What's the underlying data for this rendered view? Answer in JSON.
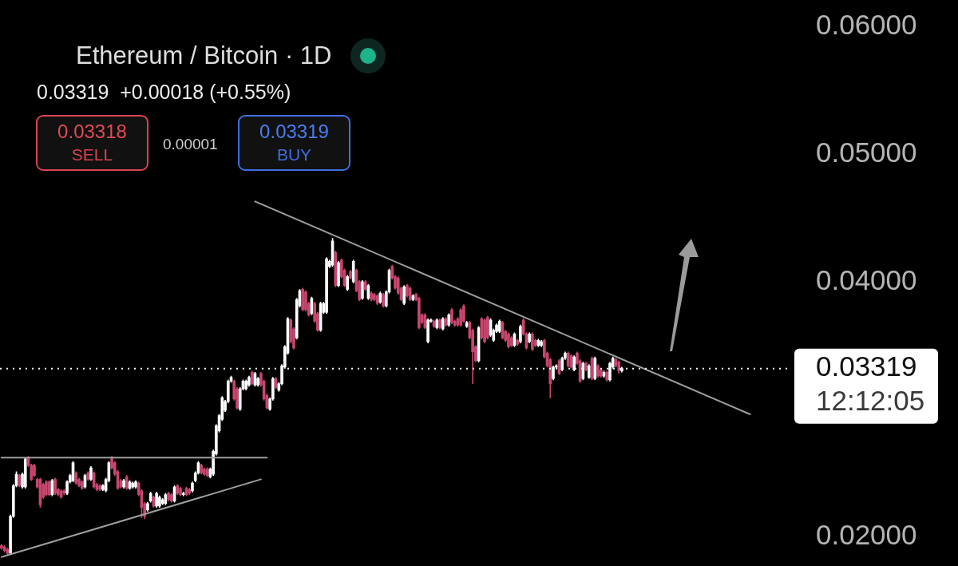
{
  "chart_data": {
    "type": "candlestick",
    "title": "Ethereum / Bitcoin · 1D",
    "subtitle": "0.03319  +0.00018 (+0.55%)",
    "categories": [
      null,
      null,
      null,
      null,
      null,
      null,
      null,
      null,
      null,
      null,
      null,
      null,
      null,
      null,
      null,
      null,
      null,
      null,
      null,
      null,
      null,
      null,
      null,
      null,
      null,
      null,
      null,
      null,
      null,
      null,
      null,
      null,
      null,
      null,
      null,
      null,
      null,
      null,
      null,
      null,
      null,
      null,
      null,
      null,
      null,
      null,
      null,
      null,
      null,
      null,
      null,
      null,
      null,
      null,
      null,
      null,
      null,
      null,
      null,
      null,
      null,
      null,
      null,
      null,
      null,
      null,
      null,
      null,
      null,
      null,
      null,
      null,
      null,
      null,
      null,
      null,
      null,
      null,
      null,
      null,
      null,
      null,
      null,
      null,
      null,
      null,
      null,
      null,
      null,
      null,
      null,
      null,
      null,
      null,
      null,
      null,
      null,
      null,
      null,
      null,
      null,
      null,
      null,
      null,
      null,
      null,
      null,
      null,
      null,
      null,
      null,
      null,
      null,
      null,
      null,
      null,
      null,
      null,
      null,
      null,
      null,
      null,
      null,
      null,
      null,
      null,
      null,
      null,
      null,
      null,
      null,
      null,
      null,
      null,
      null,
      null,
      null,
      null,
      null,
      null,
      null,
      null,
      null,
      null,
      null,
      null,
      null,
      null,
      null,
      null,
      null,
      null,
      null,
      null,
      null,
      null,
      null,
      null,
      null,
      null,
      null,
      null,
      null,
      null,
      null,
      null,
      null,
      null,
      null,
      null,
      null,
      null,
      null,
      null,
      null,
      null,
      null,
      null,
      null,
      null,
      null,
      null,
      null,
      null,
      null,
      null,
      null,
      null,
      null,
      null,
      null,
      null,
      null,
      null,
      null,
      null,
      null,
      null,
      null,
      null,
      null,
      null,
      null,
      null,
      null,
      null,
      null,
      null,
      null,
      null,
      null,
      null,
      null,
      null,
      null,
      null,
      null,
      null,
      null,
      null,
      null,
      null,
      null,
      null,
      null,
      null,
      null,
      null,
      null,
      null,
      null,
      null,
      null,
      null,
      null,
      null,
      null,
      null,
      null,
      null,
      null,
      null,
      null,
      null,
      null,
      null,
      null,
      null,
      null,
      null,
      null,
      null,
      null,
      null,
      null,
      null,
      null,
      null,
      null,
      null,
      null,
      null,
      null,
      null,
      null
    ],
    "ohlc": [
      [
        0.0193,
        0.0194,
        0.019,
        0.0191
      ],
      [
        0.0192,
        0.0193,
        0.0188,
        0.0189
      ],
      [
        0.019,
        0.0191,
        0.0185,
        0.0187
      ],
      [
        0.0187,
        0.0217,
        0.0186,
        0.0216
      ],
      [
        0.0216,
        0.0241,
        0.0215,
        0.024
      ],
      [
        0.024,
        0.0251,
        0.0239,
        0.0249
      ],
      [
        0.0248,
        0.0249,
        0.0239,
        0.024
      ],
      [
        0.0239,
        0.025,
        0.0238,
        0.0249
      ],
      [
        0.0239,
        0.0262,
        0.0238,
        0.0261
      ],
      [
        0.0262,
        0.0263,
        0.0255,
        0.0256
      ],
      [
        0.0256,
        0.0257,
        0.0244,
        0.0245
      ],
      [
        0.0256,
        0.0257,
        0.0247,
        0.0248
      ],
      [
        0.0245,
        0.0246,
        0.0238,
        0.0239
      ],
      [
        0.0245,
        0.0246,
        0.0223,
        0.0225
      ],
      [
        0.0241,
        0.0242,
        0.023,
        0.0231
      ],
      [
        0.0243,
        0.0244,
        0.0232,
        0.0233
      ],
      [
        0.0243,
        0.0244,
        0.0232,
        0.0233
      ],
      [
        0.0233,
        0.0245,
        0.0232,
        0.0244
      ],
      [
        0.0245,
        0.0246,
        0.0233,
        0.0234
      ],
      [
        0.0237,
        0.0238,
        0.0232,
        0.0233
      ],
      [
        0.0236,
        0.0237,
        0.023,
        0.0231
      ],
      [
        0.0236,
        0.0237,
        0.0233,
        0.0234
      ],
      [
        0.0234,
        0.0244,
        0.0233,
        0.0243
      ],
      [
        0.0243,
        0.0249,
        0.0242,
        0.0248
      ],
      [
        0.0244,
        0.0259,
        0.0243,
        0.0258
      ],
      [
        0.025,
        0.0251,
        0.0241,
        0.0242
      ],
      [
        0.0245,
        0.0246,
        0.0239,
        0.024
      ],
      [
        0.0243,
        0.0244,
        0.0237,
        0.0238
      ],
      [
        0.0239,
        0.0249,
        0.0238,
        0.0248
      ],
      [
        0.025,
        0.0251,
        0.0244,
        0.0245
      ],
      [
        0.0245,
        0.0255,
        0.0244,
        0.0254
      ],
      [
        0.025,
        0.0251,
        0.0238,
        0.0239
      ],
      [
        0.0241,
        0.0242,
        0.0236,
        0.0237
      ],
      [
        0.024,
        0.0241,
        0.0236,
        0.0237
      ],
      [
        0.0237,
        0.0241,
        0.0236,
        0.024
      ],
      [
        0.0236,
        0.0246,
        0.0235,
        0.0245
      ],
      [
        0.0244,
        0.0259,
        0.0243,
        0.0258
      ],
      [
        0.0262,
        0.0263,
        0.0253,
        0.0254
      ],
      [
        0.0258,
        0.0259,
        0.0248,
        0.0249
      ],
      [
        0.0251,
        0.0252,
        0.0237,
        0.0238
      ],
      [
        0.0244,
        0.0245,
        0.0238,
        0.0239
      ],
      [
        0.0239,
        0.0245,
        0.0238,
        0.0244
      ],
      [
        0.0247,
        0.0248,
        0.0237,
        0.0238
      ],
      [
        0.0238,
        0.0244,
        0.0237,
        0.0243
      ],
      [
        0.0239,
        0.0243,
        0.0238,
        0.0242
      ],
      [
        0.0239,
        0.0244,
        0.0238,
        0.0243
      ],
      [
        0.0242,
        0.0243,
        0.0232,
        0.0233
      ],
      [
        0.0236,
        0.0237,
        0.0215,
        0.0223
      ],
      [
        0.0226,
        0.0227,
        0.0214,
        0.0216
      ],
      [
        0.0221,
        0.0227,
        0.022,
        0.0226
      ],
      [
        0.0228,
        0.0235,
        0.0227,
        0.0234
      ],
      [
        0.0231,
        0.0232,
        0.0223,
        0.0224
      ],
      [
        0.0224,
        0.0235,
        0.0223,
        0.0234
      ],
      [
        0.0224,
        0.0232,
        0.0223,
        0.0231
      ],
      [
        0.0226,
        0.023,
        0.0225,
        0.0229
      ],
      [
        0.0226,
        0.0234,
        0.0225,
        0.0233
      ],
      [
        0.0234,
        0.0235,
        0.0228,
        0.0229
      ],
      [
        0.0233,
        0.0234,
        0.0227,
        0.0228
      ],
      [
        0.0228,
        0.024,
        0.0227,
        0.0239
      ],
      [
        0.024,
        0.0241,
        0.0233,
        0.0234
      ],
      [
        0.0238,
        0.0239,
        0.0232,
        0.0233
      ],
      [
        0.0233,
        0.0235,
        0.0232,
        0.0234
      ],
      [
        0.0238,
        0.0239,
        0.0232,
        0.0233
      ],
      [
        0.0237,
        0.0238,
        0.0233,
        0.0234
      ],
      [
        0.0236,
        0.0243,
        0.0235,
        0.0242
      ],
      [
        0.0244,
        0.0251,
        0.0243,
        0.025
      ],
      [
        0.025,
        0.0259,
        0.0249,
        0.0258
      ],
      [
        0.0256,
        0.0257,
        0.0249,
        0.025
      ],
      [
        0.0253,
        0.0254,
        0.0248,
        0.0249
      ],
      [
        0.0253,
        0.0254,
        0.0247,
        0.0248
      ],
      [
        0.0247,
        0.0254,
        0.0246,
        0.0253
      ],
      [
        0.0249,
        0.0268,
        0.0248,
        0.0267
      ],
      [
        0.0265,
        0.0288,
        0.0264,
        0.0287
      ],
      [
        0.0283,
        0.0296,
        0.0282,
        0.0295
      ],
      [
        0.0292,
        0.031,
        0.0291,
        0.0309
      ],
      [
        0.0299,
        0.0307,
        0.0298,
        0.0306
      ],
      [
        0.0306,
        0.0323,
        0.0305,
        0.0322
      ],
      [
        0.0322,
        0.0326,
        0.0321,
        0.0325
      ],
      [
        0.0322,
        0.0323,
        0.0307,
        0.0308
      ],
      [
        0.0316,
        0.0317,
        0.03,
        0.0301
      ],
      [
        0.03,
        0.0317,
        0.0299,
        0.0316
      ],
      [
        0.0316,
        0.0323,
        0.0315,
        0.0322
      ],
      [
        0.0316,
        0.0323,
        0.0315,
        0.0322
      ],
      [
        0.0319,
        0.0326,
        0.0318,
        0.0325
      ],
      [
        0.0329,
        0.033,
        0.0319,
        0.032
      ],
      [
        0.0319,
        0.0329,
        0.0318,
        0.0328
      ],
      [
        0.0319,
        0.0325,
        0.0318,
        0.0324
      ],
      [
        0.0328,
        0.0329,
        0.0318,
        0.0319
      ],
      [
        0.0322,
        0.0323,
        0.0307,
        0.0308
      ],
      [
        0.0311,
        0.0312,
        0.03,
        0.0301
      ],
      [
        0.03,
        0.0309,
        0.0299,
        0.0308
      ],
      [
        0.0308,
        0.0325,
        0.0307,
        0.0324
      ],
      [
        0.0324,
        0.0325,
        0.0316,
        0.0317
      ],
      [
        0.0315,
        0.0321,
        0.0314,
        0.032
      ],
      [
        0.032,
        0.0335,
        0.0319,
        0.0334
      ],
      [
        0.0333,
        0.035,
        0.0332,
        0.0349
      ],
      [
        0.0344,
        0.0372,
        0.0343,
        0.0371
      ],
      [
        0.037,
        0.0371,
        0.0352,
        0.0353
      ],
      [
        0.0363,
        0.0364,
        0.0347,
        0.0348
      ],
      [
        0.0356,
        0.0387,
        0.0355,
        0.0386
      ],
      [
        0.0381,
        0.0394,
        0.038,
        0.0393
      ],
      [
        0.0394,
        0.0395,
        0.0377,
        0.0378
      ],
      [
        0.0392,
        0.0393,
        0.0377,
        0.0378
      ],
      [
        0.0383,
        0.0384,
        0.0373,
        0.0374
      ],
      [
        0.0375,
        0.0388,
        0.0374,
        0.0387
      ],
      [
        0.0383,
        0.0384,
        0.0368,
        0.0369
      ],
      [
        0.0375,
        0.0376,
        0.0361,
        0.0362
      ],
      [
        0.0362,
        0.0384,
        0.0361,
        0.0383
      ],
      [
        0.0376,
        0.0384,
        0.0375,
        0.0383
      ],
      [
        0.0376,
        0.0419,
        0.0375,
        0.0418
      ],
      [
        0.0412,
        0.0417,
        0.0411,
        0.0416
      ],
      [
        0.0413,
        0.0434,
        0.0412,
        0.0432
      ],
      [
        0.0423,
        0.0424,
        0.0396,
        0.0397
      ],
      [
        0.0397,
        0.0416,
        0.0396,
        0.0415
      ],
      [
        0.0417,
        0.0418,
        0.0403,
        0.0404
      ],
      [
        0.0409,
        0.041,
        0.0396,
        0.0397
      ],
      [
        0.0394,
        0.0405,
        0.0393,
        0.0404
      ],
      [
        0.0408,
        0.0409,
        0.0402,
        0.0403
      ],
      [
        0.04,
        0.0417,
        0.0399,
        0.0416
      ],
      [
        0.0409,
        0.041,
        0.0392,
        0.0393
      ],
      [
        0.04,
        0.0401,
        0.0385,
        0.0386
      ],
      [
        0.0387,
        0.0401,
        0.0386,
        0.04
      ],
      [
        0.04,
        0.0401,
        0.0393,
        0.0394
      ],
      [
        0.0387,
        0.0398,
        0.0386,
        0.0397
      ],
      [
        0.0391,
        0.0392,
        0.0385,
        0.0386
      ],
      [
        0.039,
        0.0391,
        0.0385,
        0.0386
      ],
      [
        0.0389,
        0.039,
        0.0382,
        0.0383
      ],
      [
        0.0384,
        0.0392,
        0.0383,
        0.0391
      ],
      [
        0.039,
        0.0391,
        0.038,
        0.0381
      ],
      [
        0.0381,
        0.0393,
        0.038,
        0.0392
      ],
      [
        0.0392,
        0.041,
        0.0391,
        0.0409
      ],
      [
        0.0412,
        0.0413,
        0.0402,
        0.0403
      ],
      [
        0.0404,
        0.0405,
        0.0394,
        0.0395
      ],
      [
        0.0403,
        0.0404,
        0.039,
        0.0391
      ],
      [
        0.0395,
        0.0396,
        0.0385,
        0.0386
      ],
      [
        0.0383,
        0.0397,
        0.0382,
        0.0396
      ],
      [
        0.0397,
        0.0398,
        0.0388,
        0.0389
      ],
      [
        0.0395,
        0.0396,
        0.0385,
        0.0386
      ],
      [
        0.0386,
        0.039,
        0.0385,
        0.0389
      ],
      [
        0.039,
        0.0391,
        0.0385,
        0.0386
      ],
      [
        0.0387,
        0.0388,
        0.0363,
        0.0364
      ],
      [
        0.0374,
        0.0375,
        0.0367,
        0.0368
      ],
      [
        0.0374,
        0.0375,
        0.0363,
        0.0364
      ],
      [
        0.0353,
        0.0371,
        0.0352,
        0.037
      ],
      [
        0.0369,
        0.0371,
        0.0368,
        0.037
      ],
      [
        0.0369,
        0.037,
        0.0364,
        0.0365
      ],
      [
        0.0364,
        0.0371,
        0.0363,
        0.037
      ],
      [
        0.037,
        0.0371,
        0.0363,
        0.0364
      ],
      [
        0.0363,
        0.0372,
        0.0362,
        0.0371
      ],
      [
        0.0371,
        0.0372,
        0.0365,
        0.0366
      ],
      [
        0.0366,
        0.0375,
        0.0365,
        0.0374
      ],
      [
        0.0378,
        0.0379,
        0.0367,
        0.0368
      ],
      [
        0.0369,
        0.037,
        0.0365,
        0.0366
      ],
      [
        0.0371,
        0.0372,
        0.0365,
        0.0366
      ],
      [
        0.0378,
        0.0379,
        0.0365,
        0.0366
      ],
      [
        0.0381,
        0.0382,
        0.0368,
        0.0369
      ],
      [
        0.0365,
        0.0369,
        0.0364,
        0.0368
      ],
      [
        0.0368,
        0.0369,
        0.0355,
        0.0356
      ],
      [
        0.0362,
        0.0363,
        0.032,
        0.0345
      ],
      [
        0.0349,
        0.035,
        0.0337,
        0.0338
      ],
      [
        0.0338,
        0.0365,
        0.0337,
        0.0364
      ],
      [
        0.0371,
        0.0372,
        0.0355,
        0.0356
      ],
      [
        0.037,
        0.0371,
        0.0352,
        0.0353
      ],
      [
        0.0372,
        0.0373,
        0.0355,
        0.0356
      ],
      [
        0.0358,
        0.0371,
        0.0357,
        0.037
      ],
      [
        0.0354,
        0.0363,
        0.0353,
        0.0362
      ],
      [
        0.0361,
        0.0367,
        0.036,
        0.0366
      ],
      [
        0.0361,
        0.037,
        0.036,
        0.0369
      ],
      [
        0.0368,
        0.0369,
        0.0355,
        0.0356
      ],
      [
        0.0361,
        0.0362,
        0.0353,
        0.0354
      ],
      [
        0.0359,
        0.036,
        0.0348,
        0.0349
      ],
      [
        0.0356,
        0.0357,
        0.0349,
        0.035
      ],
      [
        0.035,
        0.036,
        0.0349,
        0.0359
      ],
      [
        0.0354,
        0.0355,
        0.035,
        0.0351
      ],
      [
        0.0353,
        0.0366,
        0.0352,
        0.0365
      ],
      [
        0.037,
        0.0371,
        0.0358,
        0.0359
      ],
      [
        0.0359,
        0.036,
        0.0347,
        0.0348
      ],
      [
        0.0353,
        0.036,
        0.0352,
        0.0359
      ],
      [
        0.0359,
        0.036,
        0.0346,
        0.0347
      ],
      [
        0.0354,
        0.0355,
        0.0349,
        0.035
      ],
      [
        0.035,
        0.0355,
        0.0349,
        0.0354
      ],
      [
        0.035,
        0.0354,
        0.0349,
        0.0353
      ],
      [
        0.0354,
        0.0355,
        0.034,
        0.0341
      ],
      [
        0.0344,
        0.0345,
        0.0333,
        0.0334
      ],
      [
        0.0339,
        0.034,
        0.0309,
        0.032
      ],
      [
        0.0324,
        0.0334,
        0.0323,
        0.0333
      ],
      [
        0.0333,
        0.0335,
        0.0332,
        0.0334
      ],
      [
        0.0338,
        0.0339,
        0.0327,
        0.0328
      ],
      [
        0.0331,
        0.0341,
        0.033,
        0.034
      ],
      [
        0.034,
        0.0345,
        0.0339,
        0.0344
      ],
      [
        0.0344,
        0.0345,
        0.0333,
        0.0334
      ],
      [
        0.0342,
        0.0343,
        0.0332,
        0.0333
      ],
      [
        0.0331,
        0.0342,
        0.033,
        0.0341
      ],
      [
        0.0344,
        0.0345,
        0.0335,
        0.0336
      ],
      [
        0.0338,
        0.0339,
        0.0321,
        0.0322
      ],
      [
        0.0324,
        0.0337,
        0.0323,
        0.0336
      ],
      [
        0.0336,
        0.0337,
        0.033,
        0.0331
      ],
      [
        0.0325,
        0.0335,
        0.0324,
        0.0334
      ],
      [
        0.034,
        0.0341,
        0.0323,
        0.0324
      ],
      [
        0.0324,
        0.0341,
        0.0323,
        0.034
      ],
      [
        0.0334,
        0.0335,
        0.0325,
        0.0326
      ],
      [
        0.0331,
        0.0332,
        0.0325,
        0.0326
      ],
      [
        0.0326,
        0.033,
        0.0325,
        0.0329
      ],
      [
        0.0329,
        0.033,
        0.0322,
        0.0323
      ],
      [
        0.0323,
        0.0337,
        0.0322,
        0.0336
      ],
      [
        0.0333,
        0.0341,
        0.0332,
        0.034
      ],
      [
        0.0339,
        0.034,
        0.0333,
        0.0334
      ],
      [
        0.0337,
        0.0338,
        0.0328,
        0.03301
      ],
      [
        0.03301,
        0.0333,
        0.0329,
        0.03319
      ],
      null,
      null,
      null,
      null,
      null,
      null,
      null,
      null,
      null,
      null,
      null,
      null,
      null,
      null,
      null,
      null,
      null,
      null,
      null,
      null,
      null,
      null,
      null,
      null,
      null,
      null,
      null,
      null,
      null,
      null,
      null,
      null,
      null,
      null,
      null,
      null,
      null,
      null,
      null,
      null,
      null,
      null,
      null,
      null,
      null,
      null,
      null,
      null,
      null,
      null,
      null,
      null,
      null,
      null,
      null,
      null
    ],
    "colors": [
      "#c8466e",
      "#c8466e",
      "#c8466e",
      "#ffffff",
      "#ffffff",
      "#ffffff",
      "#c8466e",
      "#ffffff",
      "#ffffff",
      "#c8466e",
      "#c8466e",
      "#c8466e",
      "#c8466e",
      "#c8466e",
      "#c8466e",
      "#c8466e",
      "#c8466e",
      "#ffffff",
      "#c8466e",
      "#c8466e",
      "#c8466e",
      "#c8466e",
      "#ffffff",
      "#ffffff",
      "#ffffff",
      "#c8466e",
      "#c8466e",
      "#c8466e",
      "#ffffff",
      "#c8466e",
      "#ffffff",
      "#c8466e",
      "#c8466e",
      "#c8466e",
      "#ffffff",
      "#ffffff",
      "#ffffff",
      "#c8466e",
      "#c8466e",
      "#c8466e",
      "#c8466e",
      "#ffffff",
      "#c8466e",
      "#ffffff",
      "#ffffff",
      "#ffffff",
      "#c8466e",
      "#c8466e",
      "#c8466e",
      "#ffffff",
      "#ffffff",
      "#c8466e",
      "#ffffff",
      "#ffffff",
      "#ffffff",
      "#ffffff",
      "#c8466e",
      "#c8466e",
      "#ffffff",
      "#c8466e",
      "#c8466e",
      "#ffffff",
      "#c8466e",
      "#c8466e",
      "#ffffff",
      "#ffffff",
      "#ffffff",
      "#c8466e",
      "#c8466e",
      "#c8466e",
      "#ffffff",
      "#ffffff",
      "#ffffff",
      "#ffffff",
      "#ffffff",
      "#ffffff",
      "#ffffff",
      "#ffffff",
      "#c8466e",
      "#c8466e",
      "#ffffff",
      "#ffffff",
      "#ffffff",
      "#ffffff",
      "#c8466e",
      "#ffffff",
      "#ffffff",
      "#c8466e",
      "#c8466e",
      "#c8466e",
      "#ffffff",
      "#ffffff",
      "#c8466e",
      "#ffffff",
      "#ffffff",
      "#ffffff",
      "#ffffff",
      "#c8466e",
      "#c8466e",
      "#ffffff",
      "#ffffff",
      "#c8466e",
      "#c8466e",
      "#c8466e",
      "#ffffff",
      "#c8466e",
      "#c8466e",
      "#ffffff",
      "#ffffff",
      "#ffffff",
      "#ffffff",
      "#ffffff",
      "#c8466e",
      "#ffffff",
      "#c8466e",
      "#c8466e",
      "#ffffff",
      "#c8466e",
      "#ffffff",
      "#c8466e",
      "#c8466e",
      "#ffffff",
      "#c8466e",
      "#ffffff",
      "#c8466e",
      "#c8466e",
      "#c8466e",
      "#ffffff",
      "#c8466e",
      "#ffffff",
      "#ffffff",
      "#c8466e",
      "#c8466e",
      "#c8466e",
      "#c8466e",
      "#ffffff",
      "#c8466e",
      "#c8466e",
      "#ffffff",
      "#c8466e",
      "#c8466e",
      "#c8466e",
      "#c8466e",
      "#ffffff",
      "#ffffff",
      "#c8466e",
      "#ffffff",
      "#c8466e",
      "#ffffff",
      "#c8466e",
      "#ffffff",
      "#c8466e",
      "#c8466e",
      "#c8466e",
      "#c8466e",
      "#c8466e",
      "#ffffff",
      "#c8466e",
      "#c8466e",
      "#c8466e",
      "#ffffff",
      "#c8466e",
      "#c8466e",
      "#c8466e",
      "#ffffff",
      "#ffffff",
      "#ffffff",
      "#ffffff",
      "#c8466e",
      "#c8466e",
      "#c8466e",
      "#c8466e",
      "#ffffff",
      "#c8466e",
      "#ffffff",
      "#c8466e",
      "#c8466e",
      "#ffffff",
      "#c8466e",
      "#c8466e",
      "#ffffff",
      "#ffffff",
      "#c8466e",
      "#c8466e",
      "#c8466e",
      "#ffffff",
      "#ffffff",
      "#c8466e",
      "#ffffff",
      "#ffffff",
      "#c8466e",
      "#c8466e",
      "#ffffff",
      "#c8466e",
      "#c8466e",
      "#ffffff",
      "#c8466e",
      "#ffffff",
      "#c8466e",
      "#ffffff",
      "#c8466e",
      "#c8466e",
      "#ffffff",
      "#c8466e",
      "#ffffff",
      "#ffffff",
      "#c8466e",
      "#c8466e",
      "#ffffff",
      null,
      null,
      null,
      null,
      null,
      null,
      null,
      null,
      null,
      null,
      null,
      null,
      null,
      null,
      null,
      null,
      null,
      null,
      null,
      null,
      null,
      null,
      null,
      null,
      null,
      null,
      null,
      null,
      null,
      null,
      null,
      null,
      null,
      null,
      null,
      null,
      null,
      null,
      null,
      null,
      null,
      null,
      null,
      null,
      null,
      null,
      null,
      null,
      null,
      null,
      null,
      null,
      null,
      null,
      null,
      null
    ],
    "series": [
      {
        "type": "line",
        "color": "#9e9e9e",
        "values": [
          0.0262,
          null,
          null,
          null,
          null,
          null,
          null,
          null,
          null,
          null,
          null,
          null,
          null,
          null,
          null,
          null,
          null,
          null,
          null,
          null,
          null,
          null,
          null,
          null,
          null,
          null,
          null,
          null,
          null,
          null,
          null,
          null,
          null,
          null,
          null,
          null,
          null,
          null,
          null,
          null,
          null,
          null,
          null,
          null,
          null,
          null,
          null,
          null,
          null,
          null,
          null,
          null,
          null,
          null,
          null,
          null,
          null,
          null,
          null,
          null,
          null,
          null,
          null,
          null,
          null,
          null,
          null,
          null,
          null,
          null,
          null,
          null,
          null,
          null,
          null,
          null,
          null,
          null,
          null,
          null,
          null,
          null,
          null,
          null,
          null,
          null,
          null,
          null,
          null,
          0.0262,
          null,
          null,
          null,
          null,
          null,
          null,
          null,
          null,
          null,
          null,
          null,
          null,
          null,
          null,
          null,
          null,
          null,
          null,
          null,
          null,
          null,
          null,
          null,
          null,
          null,
          null,
          null,
          null,
          null,
          null,
          null,
          null,
          null,
          null,
          null,
          null,
          null,
          null,
          null,
          null,
          null,
          null,
          null,
          null,
          null,
          null,
          null,
          null,
          null,
          null,
          null,
          null,
          null,
          null,
          null,
          null,
          null,
          null,
          null,
          null,
          null,
          null,
          null,
          null,
          null,
          null,
          null,
          null,
          null,
          null,
          null,
          null,
          null,
          null,
          null,
          null,
          null,
          null,
          null,
          null,
          null,
          null,
          null,
          null,
          null,
          null,
          null,
          null,
          null,
          null,
          null,
          null,
          null,
          null,
          null,
          null,
          null,
          null,
          null,
          null,
          null,
          null,
          null,
          null,
          null,
          null,
          null,
          null,
          null,
          null,
          null,
          null,
          null,
          null,
          null,
          null,
          null,
          null,
          null,
          null,
          null,
          null,
          null,
          null,
          null,
          null,
          null,
          null,
          null,
          null,
          null,
          null,
          null,
          null,
          null,
          null,
          null,
          null,
          null,
          null,
          null,
          null,
          null,
          null,
          null,
          null,
          null,
          null,
          null,
          null,
          null,
          null,
          null,
          null,
          null,
          null,
          null,
          null,
          null,
          null,
          null,
          null,
          null,
          null,
          null,
          null,
          null,
          null,
          null,
          null,
          null,
          null,
          null,
          null,
          null
        ]
      },
      {
        "type": "line",
        "color": "#9e9e9e",
        "values": [
          0.0184,
          null,
          null,
          null,
          null,
          null,
          null,
          null,
          null,
          null,
          null,
          null,
          null,
          null,
          null,
          null,
          null,
          null,
          null,
          null,
          null,
          null,
          null,
          null,
          null,
          null,
          null,
          null,
          null,
          null,
          null,
          null,
          null,
          null,
          null,
          null,
          null,
          null,
          null,
          null,
          null,
          null,
          null,
          null,
          null,
          null,
          null,
          null,
          null,
          null,
          null,
          null,
          null,
          null,
          null,
          null,
          null,
          null,
          null,
          null,
          null,
          null,
          null,
          null,
          null,
          null,
          null,
          null,
          null,
          null,
          null,
          null,
          null,
          null,
          null,
          null,
          null,
          null,
          null,
          null,
          null,
          null,
          null,
          null,
          null,
          null,
          null,
          0.0245,
          null,
          null,
          null,
          null,
          null,
          null,
          null,
          null,
          null,
          null,
          null,
          null,
          null,
          null,
          null,
          null,
          null,
          null,
          null,
          null,
          null,
          null,
          null,
          null,
          null,
          null,
          null,
          null,
          null,
          null,
          null,
          null,
          null,
          null,
          null,
          null,
          null,
          null,
          null,
          null,
          null,
          null,
          null,
          null,
          null,
          null,
          null,
          null,
          null,
          null,
          null,
          null,
          null,
          null,
          null,
          null,
          null,
          null,
          null,
          null,
          null,
          null,
          null,
          null,
          null,
          null,
          null,
          null,
          null,
          null,
          null,
          null,
          null,
          null,
          null,
          null,
          null,
          null,
          null,
          null,
          null,
          null,
          null,
          null,
          null,
          null,
          null,
          null,
          null,
          null,
          null,
          null,
          null,
          null,
          null,
          null,
          null,
          null,
          null,
          null,
          null,
          null,
          null,
          null,
          null,
          null,
          null,
          null,
          null,
          null,
          null,
          null,
          null,
          null,
          null,
          null,
          null,
          null,
          null,
          null,
          null,
          null,
          null,
          null,
          null,
          null,
          null,
          null,
          null,
          null,
          null,
          null,
          null,
          null,
          null,
          null,
          null,
          null,
          null,
          null,
          null,
          null,
          null,
          null,
          null,
          null,
          null,
          null,
          null,
          null,
          null,
          null,
          null,
          null,
          null,
          null,
          null,
          null,
          null,
          null,
          null,
          null,
          null,
          null,
          null,
          null,
          null,
          null,
          null,
          null,
          null,
          null,
          null,
          null,
          null,
          null,
          null
        ]
      },
      {
        "type": "line",
        "color": "#9e9e9e",
        "values": [
          null,
          null,
          null,
          null,
          null,
          null,
          null,
          null,
          null,
          null,
          null,
          null,
          null,
          null,
          null,
          null,
          null,
          null,
          null,
          null,
          null,
          null,
          null,
          null,
          null,
          null,
          null,
          null,
          null,
          null,
          null,
          null,
          null,
          null,
          null,
          null,
          null,
          null,
          null,
          null,
          null,
          null,
          null,
          null,
          null,
          null,
          null,
          null,
          null,
          null,
          null,
          null,
          null,
          null,
          null,
          null,
          null,
          null,
          null,
          null,
          null,
          null,
          null,
          null,
          null,
          null,
          null,
          null,
          null,
          null,
          null,
          null,
          null,
          null,
          null,
          null,
          null,
          null,
          null,
          null,
          null,
          null,
          null,
          null,
          null,
          0.0463,
          null,
          null,
          null,
          null,
          null,
          null,
          null,
          null,
          null,
          null,
          null,
          null,
          null,
          null,
          null,
          null,
          null,
          null,
          null,
          null,
          null,
          null,
          null,
          null,
          null,
          null,
          null,
          null,
          null,
          null,
          null,
          null,
          null,
          null,
          null,
          null,
          null,
          null,
          null,
          null,
          null,
          null,
          null,
          null,
          null,
          null,
          null,
          null,
          null,
          null,
          null,
          null,
          null,
          null,
          null,
          null,
          null,
          null,
          null,
          null,
          null,
          null,
          null,
          null,
          null,
          null,
          null,
          null,
          null,
          null,
          null,
          null,
          null,
          null,
          null,
          null,
          null,
          null,
          null,
          null,
          null,
          null,
          null,
          null,
          null,
          null,
          null,
          null,
          null,
          null,
          null,
          null,
          null,
          null,
          null,
          null,
          null,
          null,
          null,
          null,
          null,
          null,
          null,
          null,
          null,
          null,
          null,
          null,
          null,
          null,
          null,
          null,
          null,
          null,
          null,
          null,
          null,
          null,
          null,
          null,
          null,
          null,
          null,
          null,
          null,
          null,
          null,
          null,
          null,
          null,
          null,
          null,
          null,
          null,
          null,
          null,
          null,
          null,
          null,
          null,
          null,
          null,
          null,
          null,
          null,
          null,
          null,
          null,
          null,
          null,
          null,
          null,
          null,
          null,
          null,
          null,
          null,
          null,
          null,
          null,
          null,
          null,
          null,
          null,
          null,
          0.0296,
          null,
          null,
          null,
          null,
          null,
          null,
          null,
          null,
          null,
          null,
          null,
          null,
          null
        ]
      }
    ],
    "ylim": [
      0.0177,
      0.0621
    ],
    "yticks": [
      {
        "value": 0.02,
        "label": "0.02000"
      },
      {
        "value": 0.04,
        "label": "0.04000"
      },
      {
        "value": 0.05,
        "label": "0.05000"
      },
      {
        "value": 0.06,
        "label": "0.06000"
      }
    ],
    "tick_labels": "y",
    "legend": false,
    "ref_lines": [
      {
        "axis": "y",
        "value": 0.03319,
        "label": "0.03319",
        "color": "#ffffff",
        "line_style": "dotted"
      }
    ],
    "annotations": [
      "0.03318",
      "SELL",
      "0.00001",
      "0.03319",
      "BUY",
      "12:12:05"
    ]
  }
}
